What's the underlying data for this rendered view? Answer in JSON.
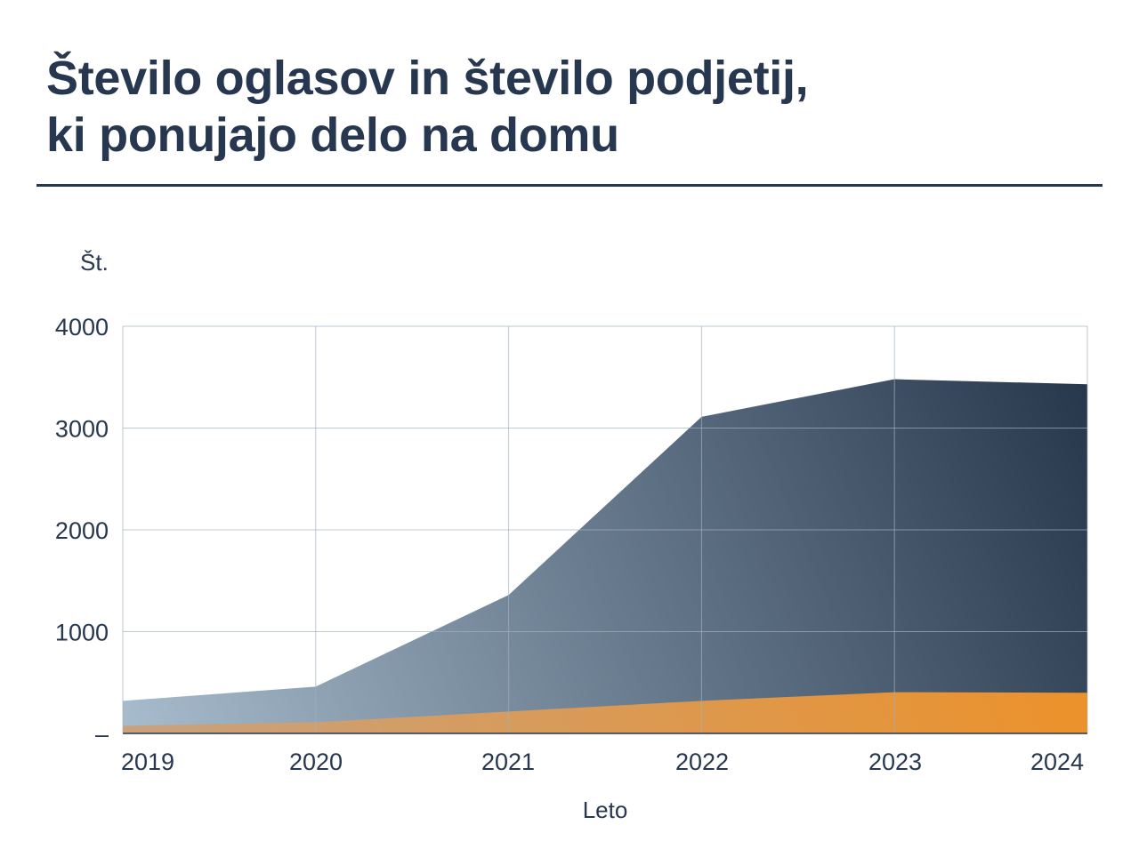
{
  "title": {
    "line1": "Število oglasov in število podjetij,",
    "line2": "ki ponujajo delo na domu"
  },
  "colors": {
    "text": "#26374f",
    "grid": "#9fb0c2",
    "dark_series_start": "#a7bccd",
    "dark_series_end": "#243449",
    "orange_series_start": "#c8a27f",
    "orange_series_end": "#f28f1d"
  },
  "chart_data": {
    "type": "area",
    "title": "Število oglasov in število podjetij, ki ponujajo delo na domu",
    "xlabel": "Leto",
    "ylabel": "Št.",
    "x": [
      "2019",
      "2020",
      "2021",
      "2022",
      "2023",
      "2024"
    ],
    "yticks": [
      "–",
      "1000",
      "2000",
      "3000",
      "4000"
    ],
    "ylim": [
      0,
      4000
    ],
    "grid": true,
    "legend": "none",
    "series": [
      {
        "values": [
          320,
          460,
          1360,
          3110,
          3480,
          3430
        ]
      },
      {
        "values": [
          75,
          110,
          215,
          320,
          405,
          400
        ]
      }
    ]
  }
}
